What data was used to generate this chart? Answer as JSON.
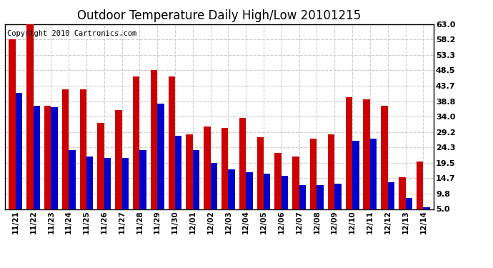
{
  "title": "Outdoor Temperature Daily High/Low 20101215",
  "copyright": "Copyright 2010 Cartronics.com",
  "dates": [
    "11/21",
    "11/22",
    "11/23",
    "11/24",
    "11/25",
    "11/26",
    "11/27",
    "11/28",
    "11/29",
    "11/30",
    "12/01",
    "12/02",
    "12/03",
    "12/04",
    "12/05",
    "12/06",
    "12/07",
    "12/08",
    "12/09",
    "12/10",
    "12/11",
    "12/12",
    "12/13",
    "12/14"
  ],
  "highs": [
    58.2,
    63.0,
    37.5,
    42.5,
    42.5,
    32.0,
    36.0,
    46.5,
    48.5,
    46.5,
    28.5,
    31.0,
    30.5,
    33.5,
    27.5,
    22.5,
    21.5,
    27.0,
    28.5,
    40.0,
    39.5,
    37.5,
    15.0,
    20.0
  ],
  "lows": [
    41.5,
    37.5,
    37.0,
    23.5,
    21.5,
    21.0,
    21.0,
    23.5,
    38.0,
    28.0,
    23.5,
    19.5,
    17.5,
    16.5,
    16.0,
    15.5,
    12.5,
    12.5,
    13.0,
    26.5,
    27.0,
    13.5,
    8.5,
    5.5
  ],
  "high_color": "#cc0000",
  "low_color": "#0000cc",
  "background_color": "#ffffff",
  "grid_color": "#cccccc",
  "ylim_min": 5.0,
  "ylim_max": 63.0,
  "yticks": [
    5.0,
    9.8,
    14.7,
    19.5,
    24.3,
    29.2,
    34.0,
    38.8,
    43.7,
    48.5,
    53.3,
    58.2,
    63.0
  ],
  "title_fontsize": 12,
  "copyright_fontsize": 7.5,
  "bar_width": 0.38,
  "figsize": [
    6.9,
    3.75
  ],
  "dpi": 100
}
